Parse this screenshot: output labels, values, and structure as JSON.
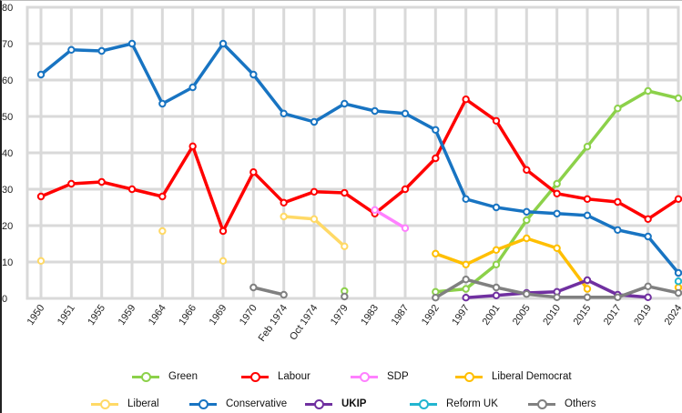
{
  "chart_data": {
    "type": "line",
    "title": "",
    "xlabel": "",
    "ylabel": "",
    "ylim": [
      0,
      80
    ],
    "yticks": [
      0,
      10,
      20,
      30,
      40,
      50,
      60,
      70,
      80
    ],
    "grid": true,
    "legend_position": "bottom",
    "categories": [
      "1950",
      "1951",
      "1955",
      "1959",
      "1964",
      "1966",
      "1969",
      "1970",
      "Feb 1974",
      "Oct 1974",
      "1979",
      "1983",
      "1987",
      "1992",
      "1997",
      "2001",
      "2005",
      "2010",
      "2015",
      "2017",
      "2019",
      "2024"
    ],
    "series": [
      {
        "name": "Green",
        "color": "#8cd14a",
        "bold": false,
        "values": [
          null,
          null,
          null,
          null,
          null,
          null,
          null,
          null,
          null,
          null,
          2,
          null,
          null,
          1.8,
          2.6,
          9.3,
          21.5,
          31.5,
          41.7,
          52.2,
          57,
          55
        ]
      },
      {
        "name": "Labour",
        "color": "#ff0000",
        "bold": false,
        "values": [
          28,
          31.5,
          32,
          30,
          28,
          41.8,
          18.5,
          34.7,
          26.3,
          29.3,
          29,
          23.3,
          30,
          38.5,
          54.7,
          48.8,
          35.3,
          28.8,
          27.3,
          26.5,
          21.8,
          27.3
        ]
      },
      {
        "name": "SDP",
        "color": "#ff80ff",
        "bold": false,
        "values": [
          null,
          null,
          null,
          null,
          null,
          null,
          null,
          null,
          null,
          null,
          null,
          24.3,
          19.3,
          null,
          null,
          null,
          null,
          null,
          null,
          null,
          null,
          null
        ]
      },
      {
        "name": "Liberal Democrat",
        "color": "#ffbf00",
        "bold": false,
        "values": [
          null,
          null,
          null,
          null,
          null,
          null,
          null,
          null,
          null,
          null,
          null,
          null,
          null,
          12.3,
          9.3,
          13.3,
          16.5,
          13.8,
          2.6,
          null,
          null,
          3
        ]
      },
      {
        "name": "Liberal",
        "color": "#ffd966",
        "bold": false,
        "values": [
          10.3,
          null,
          null,
          null,
          18.5,
          null,
          10.3,
          null,
          22.5,
          21.8,
          14.3,
          null,
          null,
          null,
          null,
          null,
          null,
          null,
          null,
          null,
          null,
          null
        ]
      },
      {
        "name": "Conservative",
        "color": "#1874c2",
        "bold": false,
        "values": [
          61.5,
          68.3,
          68,
          70,
          53.5,
          58,
          70,
          61.5,
          50.8,
          48.5,
          53.5,
          51.5,
          50.8,
          46.3,
          27.3,
          25,
          23.8,
          23.3,
          22.8,
          18.8,
          17,
          7
        ]
      },
      {
        "name": "UKIP",
        "color": "#7030a0",
        "bold": true,
        "values": [
          null,
          null,
          null,
          null,
          null,
          null,
          null,
          null,
          null,
          null,
          null,
          null,
          null,
          null,
          0.2,
          0.8,
          1.5,
          1.8,
          5,
          1,
          0.3,
          null
        ]
      },
      {
        "name": "Reform UK",
        "color": "#22b5d0",
        "bold": false,
        "values": [
          null,
          null,
          null,
          null,
          null,
          null,
          null,
          null,
          null,
          null,
          null,
          null,
          null,
          null,
          null,
          null,
          null,
          null,
          null,
          null,
          null,
          4.7
        ]
      },
      {
        "name": "Others",
        "color": "#808080",
        "bold": false,
        "values": [
          null,
          null,
          null,
          null,
          null,
          null,
          null,
          3,
          1,
          null,
          0.5,
          null,
          null,
          0.2,
          5.2,
          3,
          1.2,
          0.3,
          0.3,
          0.3,
          3.3,
          1.5
        ]
      }
    ]
  }
}
